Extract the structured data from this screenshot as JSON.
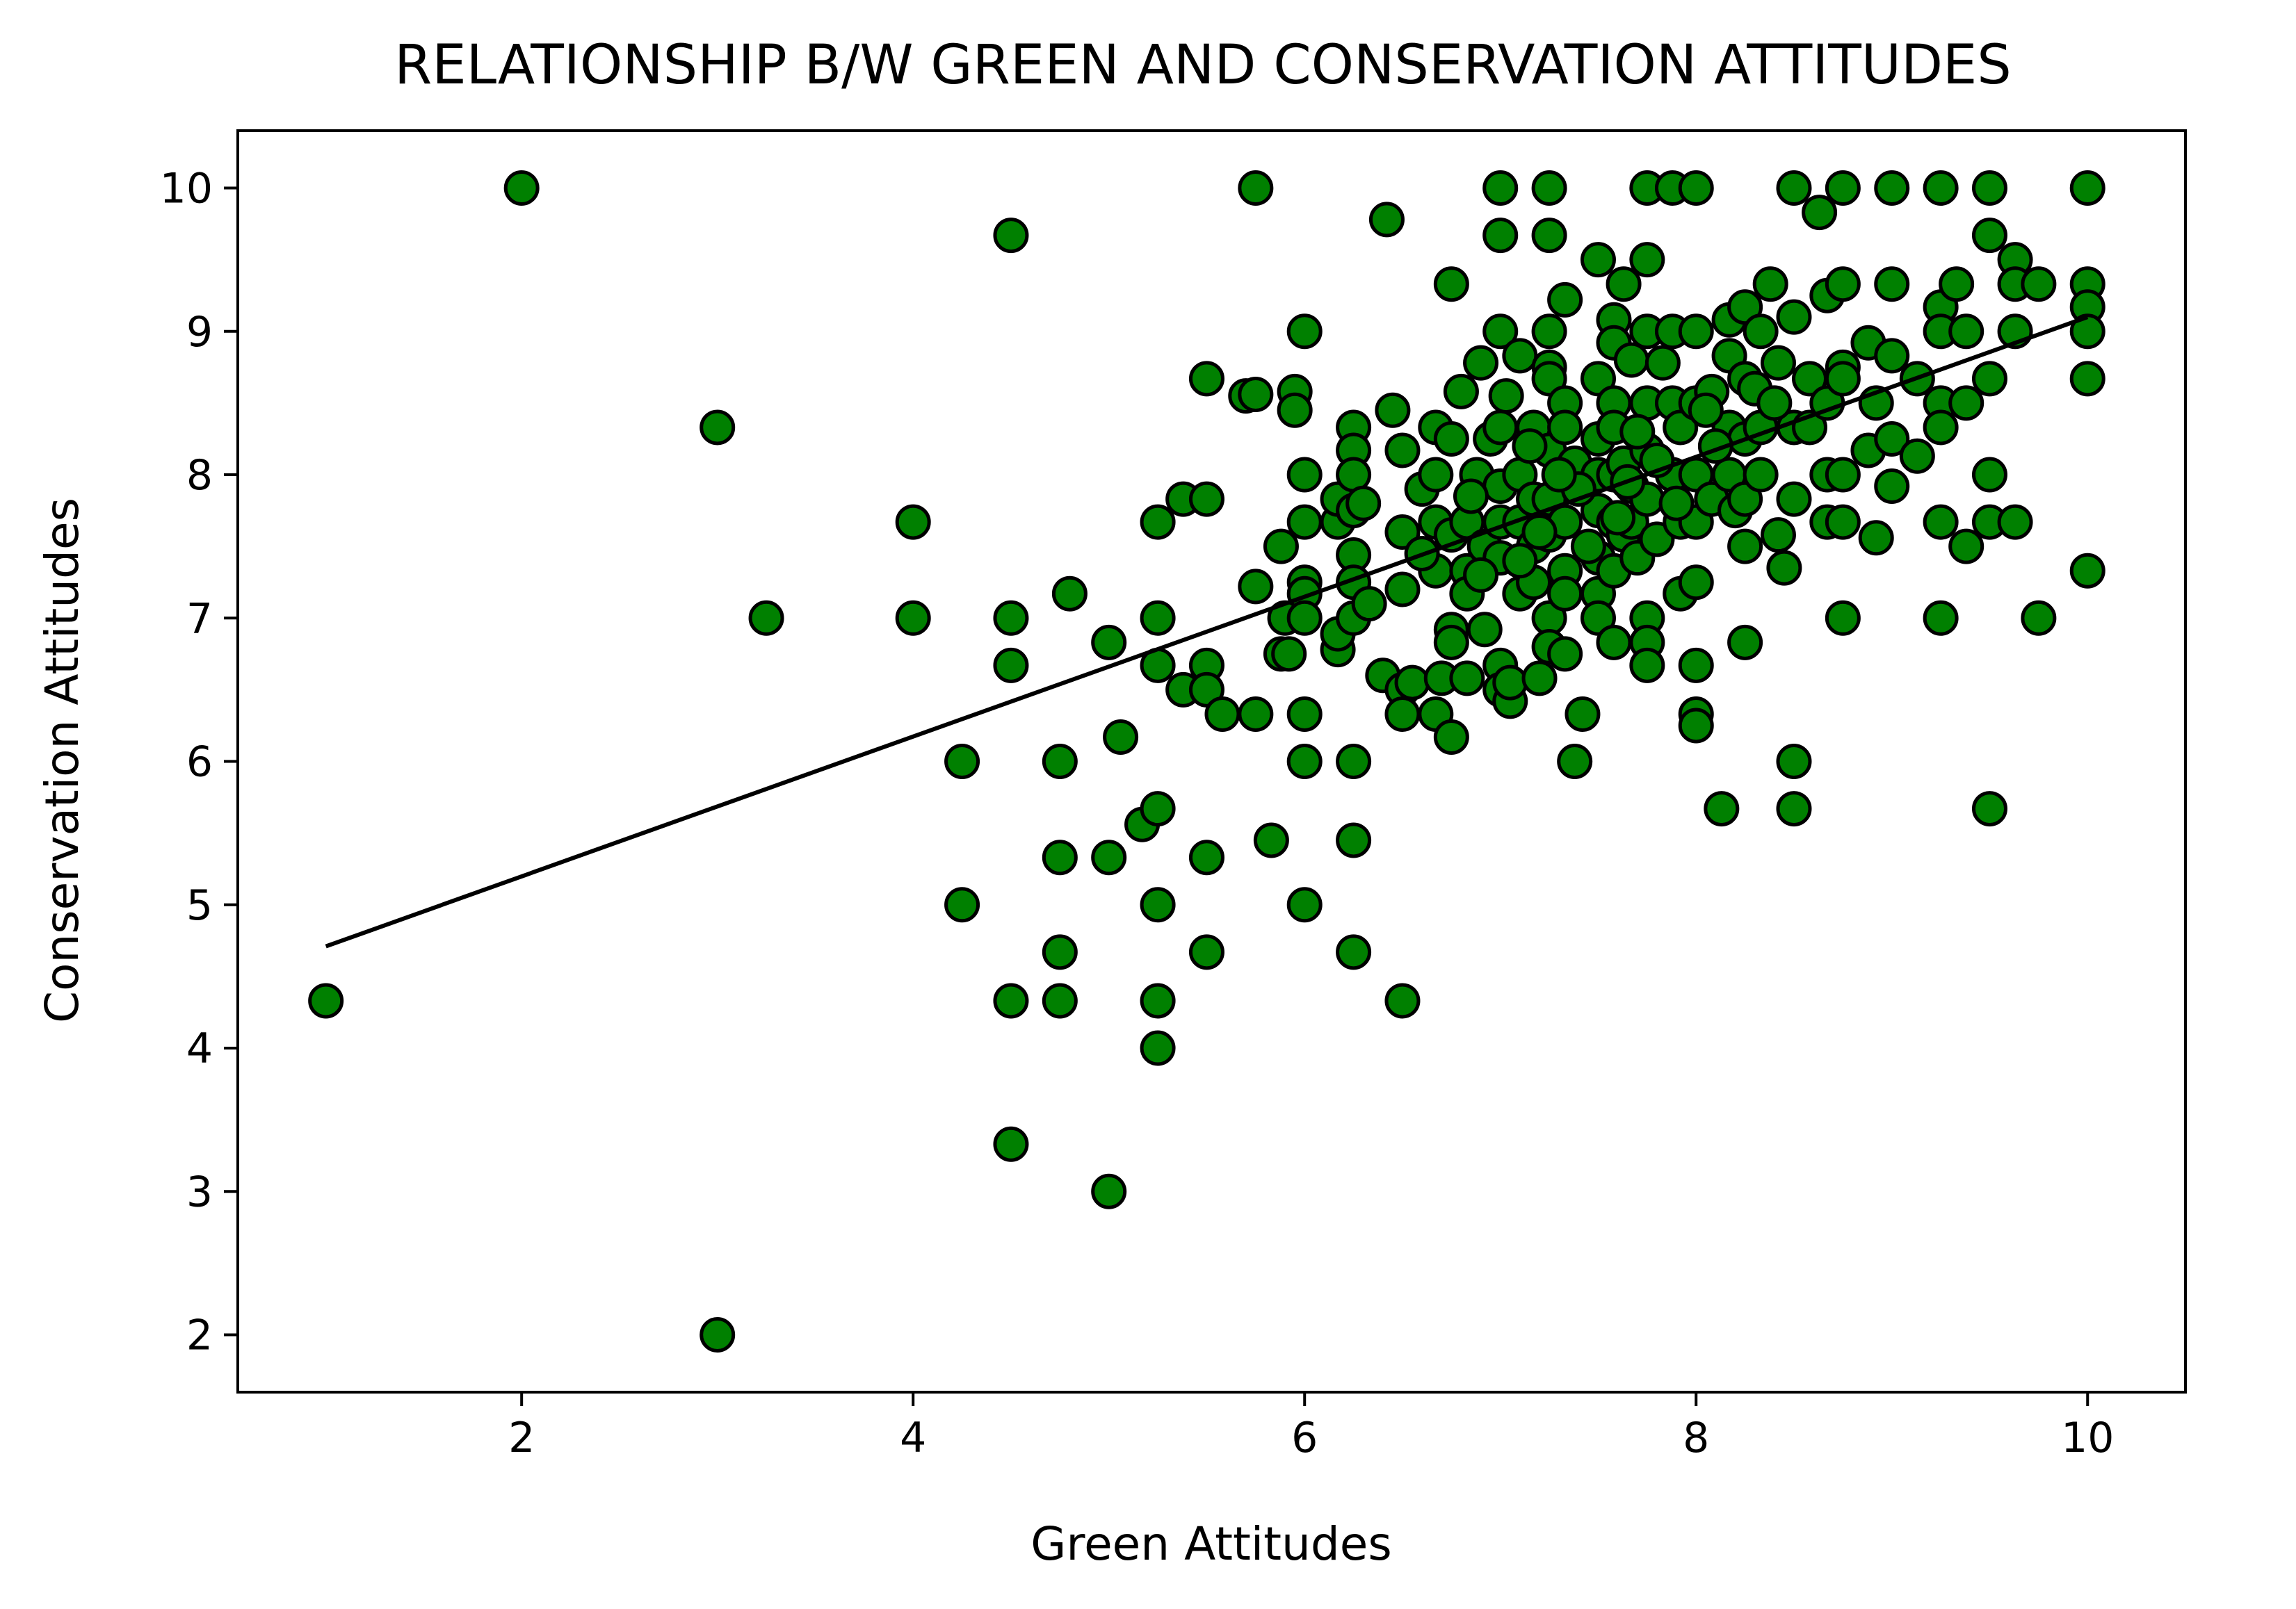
{
  "chart_data": {
    "type": "scatter",
    "title": "RELATIONSHIP B/W GREEN AND CONSERVATION ATTITUDES",
    "xlabel": "Green Attitudes",
    "ylabel": "Conservation Attitudes",
    "xlim": [
      0.55,
      10.5
    ],
    "ylim": [
      1.6,
      10.4
    ],
    "xticks": [
      2,
      4,
      6,
      8,
      10
    ],
    "yticks": [
      2,
      3,
      4,
      5,
      6,
      7,
      8,
      9,
      10
    ],
    "grid": false,
    "legend": "none",
    "marker_color": "#008000",
    "marker_edge_color": "#000000",
    "trendline_color": "#000000",
    "trendline": [
      [
        1.0,
        4.71
      ],
      [
        10.0,
        9.1
      ]
    ],
    "points": [
      [
        2.0,
        10.0
      ],
      [
        1.0,
        4.33
      ],
      [
        3.0,
        8.33
      ],
      [
        3.0,
        2.0
      ],
      [
        3.25,
        7.0
      ],
      [
        4.0,
        7.67
      ],
      [
        4.0,
        7.0
      ],
      [
        4.25,
        6.0
      ],
      [
        4.25,
        5.0
      ],
      [
        4.5,
        9.67
      ],
      [
        4.5,
        7.0
      ],
      [
        4.5,
        6.67
      ],
      [
        4.5,
        4.33
      ],
      [
        4.5,
        3.33
      ],
      [
        4.75,
        6.0
      ],
      [
        4.75,
        5.33
      ],
      [
        4.75,
        4.67
      ],
      [
        4.75,
        4.33
      ],
      [
        4.8,
        7.17
      ],
      [
        5.0,
        6.83
      ],
      [
        5.0,
        5.33
      ],
      [
        5.0,
        3.0
      ],
      [
        5.06,
        6.17
      ],
      [
        5.17,
        5.56
      ],
      [
        5.25,
        7.67
      ],
      [
        5.25,
        7.0
      ],
      [
        5.25,
        6.67
      ],
      [
        5.25,
        5.67
      ],
      [
        5.25,
        5.0
      ],
      [
        5.25,
        4.33
      ],
      [
        5.25,
        4.0
      ],
      [
        5.38,
        7.83
      ],
      [
        5.38,
        6.5
      ],
      [
        5.5,
        8.67
      ],
      [
        5.5,
        7.83
      ],
      [
        5.5,
        6.67
      ],
      [
        5.5,
        6.5
      ],
      [
        5.5,
        5.33
      ],
      [
        5.5,
        4.67
      ],
      [
        5.58,
        6.33
      ],
      [
        5.7,
        8.55
      ],
      [
        5.75,
        10.0
      ],
      [
        5.75,
        8.56
      ],
      [
        5.75,
        7.22
      ],
      [
        5.75,
        6.33
      ],
      [
        5.83,
        5.45
      ],
      [
        5.88,
        7.5
      ],
      [
        5.88,
        6.75
      ],
      [
        5.9,
        7.0
      ],
      [
        5.92,
        6.75
      ],
      [
        5.95,
        8.58
      ],
      [
        5.95,
        8.45
      ],
      [
        6.0,
        9.0
      ],
      [
        6.0,
        8.0
      ],
      [
        6.0,
        7.67
      ],
      [
        6.0,
        7.25
      ],
      [
        6.0,
        7.17
      ],
      [
        6.0,
        7.0
      ],
      [
        6.0,
        6.33
      ],
      [
        6.0,
        6.0
      ],
      [
        6.0,
        5.0
      ],
      [
        6.17,
        7.67
      ],
      [
        6.17,
        7.83
      ],
      [
        6.17,
        6.78
      ],
      [
        6.17,
        6.89
      ],
      [
        6.25,
        8.33
      ],
      [
        6.25,
        8.17
      ],
      [
        6.25,
        8.0
      ],
      [
        6.25,
        7.75
      ],
      [
        6.25,
        7.44
      ],
      [
        6.25,
        7.25
      ],
      [
        6.25,
        7.0
      ],
      [
        6.25,
        6.0
      ],
      [
        6.25,
        5.45
      ],
      [
        6.25,
        4.67
      ],
      [
        6.3,
        7.8
      ],
      [
        6.33,
        7.1
      ],
      [
        6.4,
        6.6
      ],
      [
        6.42,
        9.78
      ],
      [
        6.45,
        8.45
      ],
      [
        6.5,
        8.17
      ],
      [
        6.5,
        7.6
      ],
      [
        6.5,
        7.2
      ],
      [
        6.5,
        6.5
      ],
      [
        6.5,
        6.33
      ],
      [
        6.5,
        4.33
      ],
      [
        6.55,
        6.55
      ],
      [
        6.6,
        7.9
      ],
      [
        6.67,
        8.33
      ],
      [
        6.67,
        8.0
      ],
      [
        6.67,
        7.67
      ],
      [
        6.67,
        7.33
      ],
      [
        6.67,
        6.33
      ],
      [
        6.7,
        6.58
      ],
      [
        6.75,
        9.33
      ],
      [
        6.75,
        8.25
      ],
      [
        6.75,
        7.58
      ],
      [
        6.75,
        6.92
      ],
      [
        6.75,
        6.83
      ],
      [
        6.75,
        6.17
      ],
      [
        6.8,
        8.58
      ],
      [
        6.83,
        7.67
      ],
      [
        6.83,
        7.33
      ],
      [
        6.83,
        7.17
      ],
      [
        6.83,
        6.58
      ],
      [
        6.88,
        8.0
      ],
      [
        6.9,
        8.78
      ],
      [
        6.92,
        7.5
      ],
      [
        6.92,
        6.92
      ],
      [
        6.95,
        8.25
      ],
      [
        7.0,
        10.0
      ],
      [
        7.0,
        9.67
      ],
      [
        7.0,
        9.0
      ],
      [
        7.0,
        8.33
      ],
      [
        7.0,
        7.92
      ],
      [
        7.0,
        7.67
      ],
      [
        7.0,
        7.42
      ],
      [
        7.0,
        6.67
      ],
      [
        7.0,
        6.5
      ],
      [
        7.03,
        8.55
      ],
      [
        7.05,
        6.42
      ],
      [
        7.05,
        6.55
      ],
      [
        7.1,
        8.83
      ],
      [
        7.1,
        8.0
      ],
      [
        7.1,
        7.67
      ],
      [
        7.1,
        7.17
      ],
      [
        7.17,
        8.33
      ],
      [
        7.17,
        7.83
      ],
      [
        7.17,
        7.5
      ],
      [
        7.17,
        7.25
      ],
      [
        7.2,
        6.58
      ],
      [
        7.25,
        10.0
      ],
      [
        7.25,
        9.67
      ],
      [
        7.25,
        9.0
      ],
      [
        7.25,
        8.75
      ],
      [
        7.25,
        8.67
      ],
      [
        7.25,
        8.17
      ],
      [
        7.25,
        7.83
      ],
      [
        7.25,
        7.58
      ],
      [
        7.25,
        7.0
      ],
      [
        7.25,
        6.8
      ],
      [
        7.33,
        9.22
      ],
      [
        7.33,
        8.5
      ],
      [
        7.33,
        8.33
      ],
      [
        7.33,
        7.67
      ],
      [
        7.33,
        7.33
      ],
      [
        7.33,
        7.17
      ],
      [
        7.33,
        6.75
      ],
      [
        7.38,
        8.08
      ],
      [
        7.38,
        6.0
      ],
      [
        7.42,
        6.33
      ],
      [
        7.5,
        9.5
      ],
      [
        7.5,
        8.67
      ],
      [
        7.5,
        8.25
      ],
      [
        7.5,
        8.0
      ],
      [
        7.5,
        7.75
      ],
      [
        7.5,
        7.42
      ],
      [
        7.5,
        7.17
      ],
      [
        7.5,
        7.0
      ],
      [
        7.58,
        9.08
      ],
      [
        7.58,
        8.92
      ],
      [
        7.58,
        8.5
      ],
      [
        7.58,
        8.33
      ],
      [
        7.58,
        8.0
      ],
      [
        7.58,
        7.67
      ],
      [
        7.58,
        7.33
      ],
      [
        7.58,
        6.83
      ],
      [
        7.63,
        9.33
      ],
      [
        7.63,
        8.08
      ],
      [
        7.63,
        7.58
      ],
      [
        7.67,
        8.8
      ],
      [
        7.67,
        7.92
      ],
      [
        7.67,
        7.67
      ],
      [
        7.7,
        7.42
      ],
      [
        7.75,
        10.0
      ],
      [
        7.75,
        9.5
      ],
      [
        7.75,
        9.0
      ],
      [
        7.75,
        8.5
      ],
      [
        7.75,
        8.17
      ],
      [
        7.75,
        7.83
      ],
      [
        7.75,
        7.0
      ],
      [
        7.75,
        6.83
      ],
      [
        7.75,
        6.67
      ],
      [
        7.8,
        7.55
      ],
      [
        7.83,
        8.78
      ],
      [
        7.88,
        10.0
      ],
      [
        7.88,
        9.0
      ],
      [
        7.88,
        8.5
      ],
      [
        7.88,
        8.0
      ],
      [
        7.92,
        8.33
      ],
      [
        7.92,
        7.67
      ],
      [
        7.92,
        7.17
      ],
      [
        8.0,
        10.0
      ],
      [
        8.0,
        9.0
      ],
      [
        8.0,
        8.5
      ],
      [
        8.0,
        8.0
      ],
      [
        8.0,
        7.67
      ],
      [
        8.0,
        7.25
      ],
      [
        8.0,
        6.67
      ],
      [
        8.0,
        6.33
      ],
      [
        8.0,
        6.25
      ],
      [
        8.08,
        8.58
      ],
      [
        8.08,
        7.83
      ],
      [
        8.13,
        5.67
      ],
      [
        8.17,
        9.08
      ],
      [
        8.17,
        8.83
      ],
      [
        8.17,
        8.33
      ],
      [
        8.17,
        8.0
      ],
      [
        8.2,
        7.75
      ],
      [
        8.25,
        9.17
      ],
      [
        8.25,
        8.67
      ],
      [
        8.25,
        8.25
      ],
      [
        8.25,
        7.83
      ],
      [
        8.25,
        7.5
      ],
      [
        8.25,
        6.83
      ],
      [
        8.33,
        9.0
      ],
      [
        8.33,
        8.33
      ],
      [
        8.33,
        8.0
      ],
      [
        8.38,
        9.33
      ],
      [
        8.42,
        8.78
      ],
      [
        8.42,
        7.58
      ],
      [
        8.45,
        7.35
      ],
      [
        8.5,
        10.0
      ],
      [
        8.5,
        9.1
      ],
      [
        8.5,
        8.33
      ],
      [
        8.5,
        7.83
      ],
      [
        8.5,
        6.0
      ],
      [
        8.5,
        5.67
      ],
      [
        8.58,
        8.67
      ],
      [
        8.58,
        8.33
      ],
      [
        8.63,
        9.83
      ],
      [
        8.67,
        9.25
      ],
      [
        8.67,
        8.5
      ],
      [
        8.67,
        8.0
      ],
      [
        8.67,
        7.67
      ],
      [
        8.75,
        10.0
      ],
      [
        8.75,
        9.33
      ],
      [
        8.75,
        8.75
      ],
      [
        8.75,
        8.67
      ],
      [
        8.75,
        8.0
      ],
      [
        8.75,
        7.67
      ],
      [
        8.75,
        7.0
      ],
      [
        8.88,
        8.92
      ],
      [
        8.88,
        8.17
      ],
      [
        8.92,
        8.5
      ],
      [
        8.92,
        7.56
      ],
      [
        9.0,
        10.0
      ],
      [
        9.0,
        9.33
      ],
      [
        9.0,
        8.83
      ],
      [
        9.0,
        8.25
      ],
      [
        9.0,
        7.92
      ],
      [
        9.13,
        8.67
      ],
      [
        9.13,
        8.13
      ],
      [
        9.25,
        10.0
      ],
      [
        9.25,
        9.17
      ],
      [
        9.25,
        9.0
      ],
      [
        9.25,
        8.5
      ],
      [
        9.25,
        8.33
      ],
      [
        9.25,
        7.67
      ],
      [
        9.25,
        7.0
      ],
      [
        9.33,
        9.33
      ],
      [
        9.38,
        9.0
      ],
      [
        9.38,
        8.5
      ],
      [
        9.38,
        7.5
      ],
      [
        9.5,
        10.0
      ],
      [
        9.5,
        9.67
      ],
      [
        9.5,
        8.67
      ],
      [
        9.5,
        8.0
      ],
      [
        9.5,
        7.67
      ],
      [
        9.5,
        5.67
      ],
      [
        9.63,
        9.5
      ],
      [
        9.63,
        9.33
      ],
      [
        9.63,
        9.0
      ],
      [
        9.63,
        7.67
      ],
      [
        9.75,
        9.33
      ],
      [
        9.75,
        7.0
      ],
      [
        10.0,
        10.0
      ],
      [
        10.0,
        9.33
      ],
      [
        10.0,
        9.17
      ],
      [
        10.0,
        9.0
      ],
      [
        10.0,
        8.67
      ],
      [
        10.0,
        7.33
      ],
      [
        7.4,
        7.9
      ],
      [
        7.6,
        7.7
      ],
      [
        7.8,
        8.1
      ],
      [
        7.2,
        7.6
      ],
      [
        8.1,
        8.2
      ],
      [
        7.9,
        7.8
      ],
      [
        7.3,
        8.0
      ],
      [
        7.7,
        8.3
      ],
      [
        8.3,
        8.6
      ],
      [
        7.1,
        7.4
      ],
      [
        6.9,
        7.3
      ],
      [
        7.45,
        7.5
      ],
      [
        7.65,
        7.95
      ],
      [
        8.05,
        8.45
      ],
      [
        8.4,
        8.5
      ],
      [
        6.6,
        7.45
      ],
      [
        6.85,
        7.85
      ],
      [
        7.15,
        8.2
      ]
    ]
  }
}
